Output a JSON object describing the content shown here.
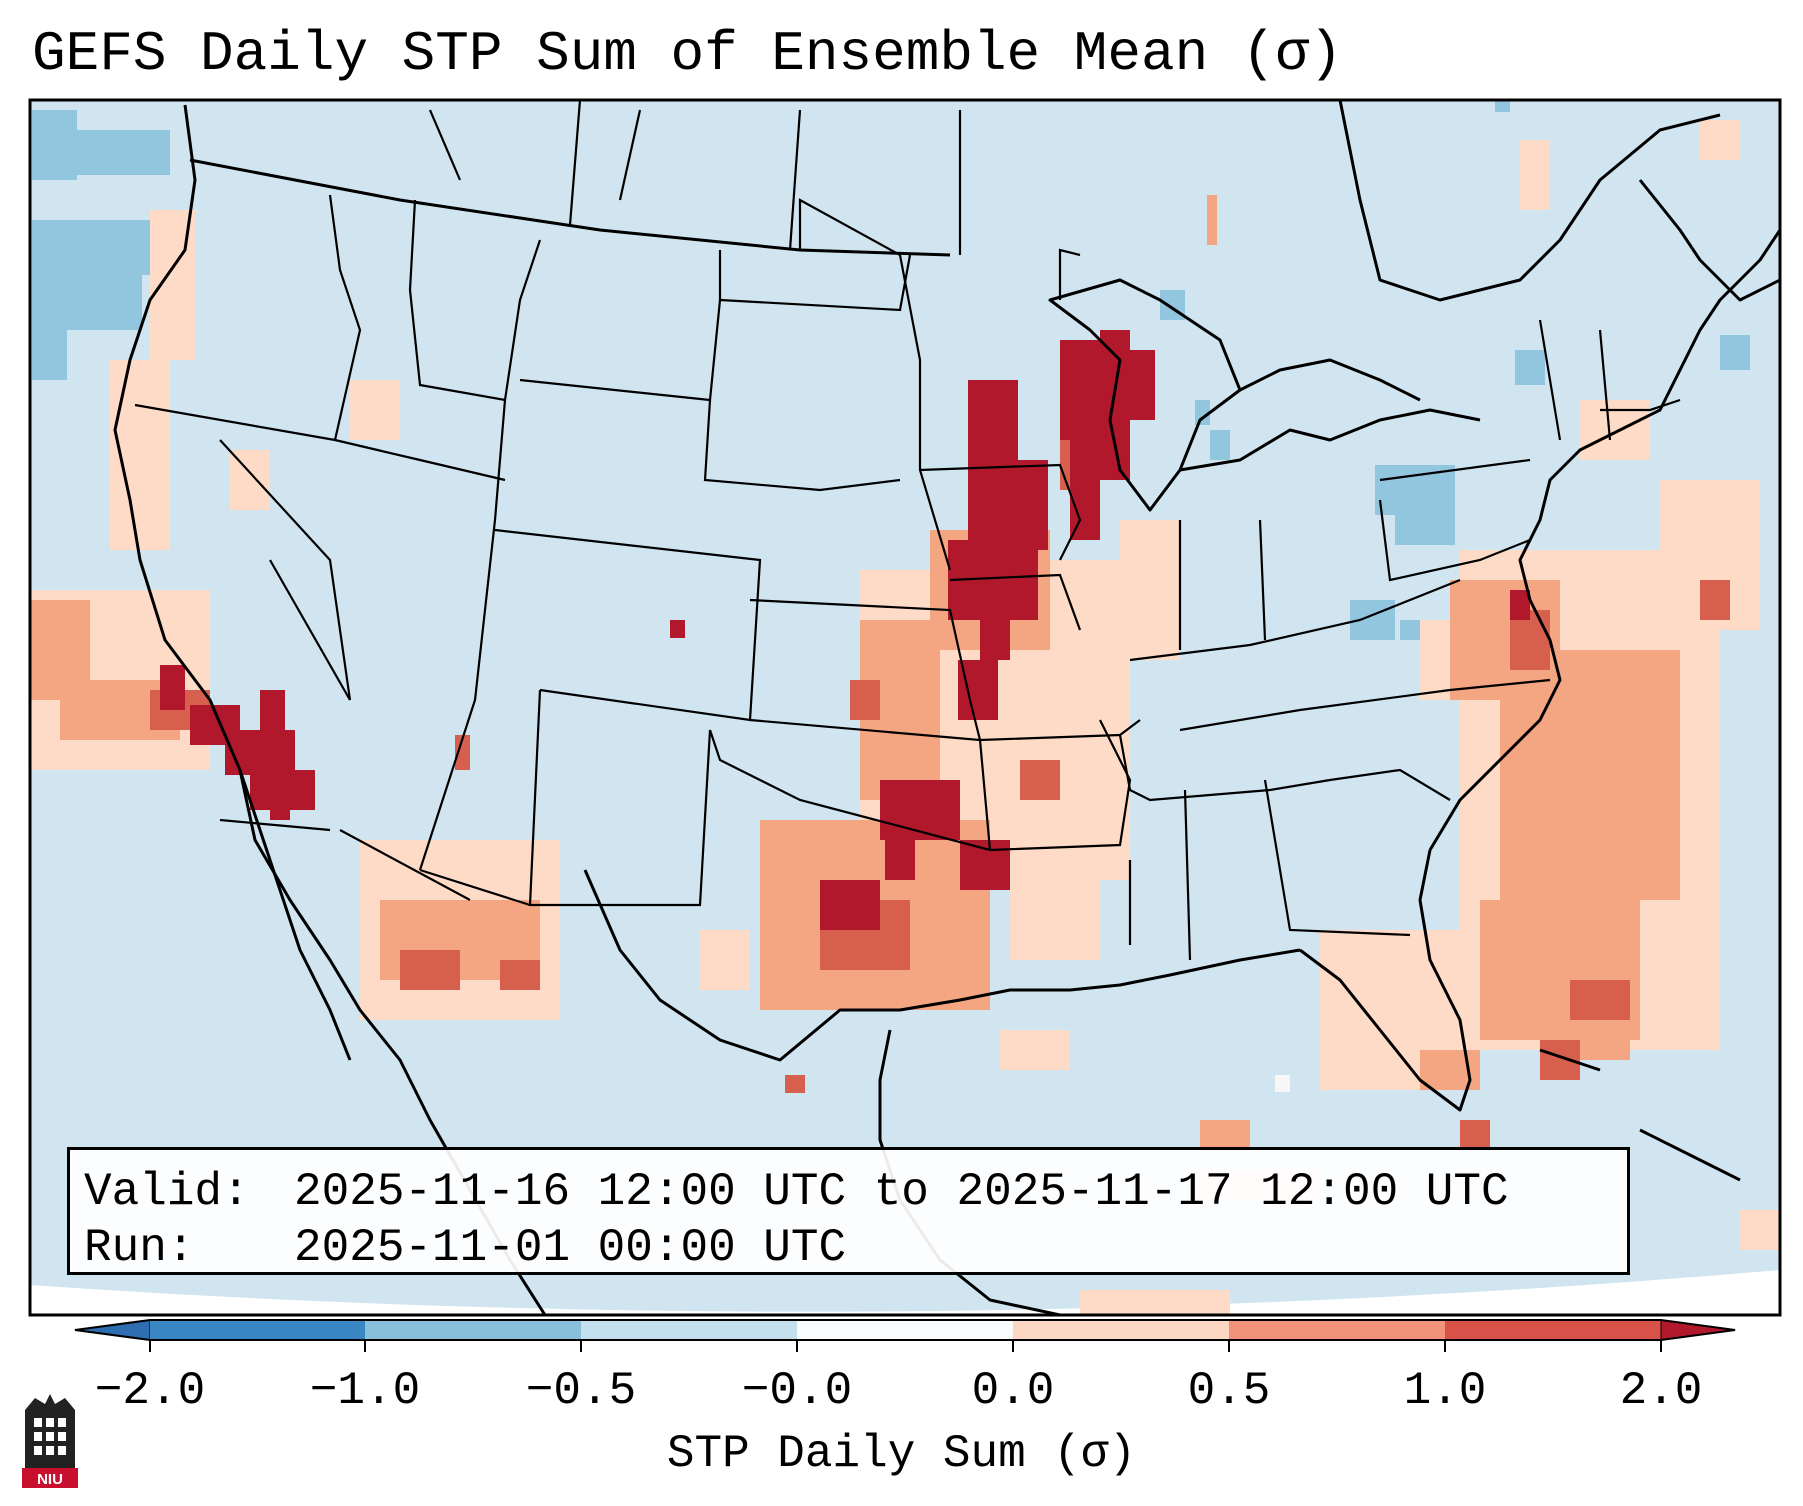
{
  "title": "GEFS Daily STP Sum of Ensemble Mean (σ)",
  "info": {
    "valid_label": "Valid:",
    "valid_value": "2025-11-16 12:00 UTC to 2025-11-17 12:00 UTC",
    "run_label": "Run:",
    "run_value": "2025-11-01 00:00 UTC"
  },
  "colorbar": {
    "label": "STP Daily Sum (σ)",
    "ticks": [
      "−2.0",
      "−1.0",
      "−0.5",
      "−0.0",
      "0.0",
      "0.5",
      "1.0",
      "2.0"
    ],
    "bin_colors": [
      "#3a86c2",
      "#88c0dc",
      "#c4e0ee",
      "#f9fbfd",
      "#fcd7c3",
      "#f0937a",
      "#d8524a"
    ],
    "under_color": "#2d6db0",
    "over_color": "#b2182b"
  },
  "map": {
    "background_color": "#d1e5f0",
    "projection": "Lambert Conformal (CONUS)",
    "legend_bins": [
      {
        "color": "#92c5de",
        "range": "-1.0 to -0.5"
      },
      {
        "color": "#fddbc7",
        "range": "0.0 to 0.5"
      },
      {
        "color": "#f4a582",
        "range": "0.5 to 1.0"
      },
      {
        "color": "#d6604d",
        "range": "1.0 to 2.0"
      },
      {
        "color": "#b2182b",
        "range": "> 2.0"
      }
    ]
  },
  "logo": {
    "text": "NIU",
    "color": "#c8102e"
  }
}
